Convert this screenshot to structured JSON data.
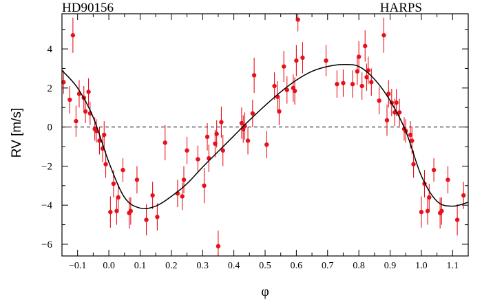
{
  "chart_data": {
    "type": "scatter",
    "title_left": "HD90156",
    "title_right": "HARPS",
    "xlabel": "φ",
    "ylabel": "RV [m/s]",
    "xlim": [
      -0.15,
      1.15
    ],
    "ylim": [
      -6.6,
      5.8
    ],
    "x_ticks": [
      -0.1,
      0.0,
      0.1,
      0.2,
      0.3,
      0.4,
      0.5,
      0.6,
      0.7,
      0.8,
      0.9,
      1.0,
      1.1
    ],
    "x_tick_labels": [
      "−0.1",
      "0.0",
      "0.1",
      "0.2",
      "0.3",
      "0.4",
      "0.5",
      "0.6",
      "0.7",
      "0.8",
      "0.9",
      "1.0",
      "1.1"
    ],
    "y_ticks": [
      -6,
      -4,
      -2,
      0,
      2,
      4
    ],
    "y_tick_labels": [
      "−6",
      "−4",
      "−2",
      "0",
      "2",
      "4"
    ],
    "zero_line": true,
    "colors": {
      "points": "#e8101a",
      "model": "#000000",
      "frame": "#000000"
    },
    "model_curve": {
      "x": [
        -0.15,
        -0.1,
        -0.05,
        0.0,
        0.05,
        0.1,
        0.15,
        0.2,
        0.25,
        0.3,
        0.35,
        0.4,
        0.45,
        0.5,
        0.55,
        0.6,
        0.65,
        0.7,
        0.75,
        0.8,
        0.85,
        0.9,
        0.95,
        1.0,
        1.05,
        1.1,
        1.15
      ],
      "y": [
        2.9,
        2.0,
        0.5,
        -1.8,
        -3.6,
        -4.15,
        -4.05,
        -3.55,
        -2.9,
        -2.05,
        -1.25,
        -0.45,
        0.35,
        1.1,
        1.8,
        2.4,
        2.85,
        3.1,
        3.2,
        3.1,
        2.45,
        1.35,
        -0.2,
        -2.5,
        -3.8,
        -4.05,
        -3.85
      ]
    },
    "points": [
      {
        "x": -0.145,
        "y": 2.3,
        "err": 0.6
      },
      {
        "x": -0.125,
        "y": 1.4,
        "err": 0.7
      },
      {
        "x": -0.115,
        "y": 4.7,
        "err": 0.9
      },
      {
        "x": -0.105,
        "y": 0.3,
        "err": 0.8
      },
      {
        "x": -0.095,
        "y": 1.7,
        "err": 0.7
      },
      {
        "x": -0.08,
        "y": 1.5,
        "err": 0.6
      },
      {
        "x": -0.075,
        "y": 0.8,
        "err": 0.6
      },
      {
        "x": -0.065,
        "y": 1.8,
        "err": 0.7
      },
      {
        "x": -0.06,
        "y": 0.7,
        "err": 0.6
      },
      {
        "x": -0.045,
        "y": -0.1,
        "err": 0.6
      },
      {
        "x": -0.04,
        "y": -0.2,
        "err": 0.6
      },
      {
        "x": -0.03,
        "y": -0.7,
        "err": 0.7
      },
      {
        "x": -0.02,
        "y": -1.1,
        "err": 0.7
      },
      {
        "x": -0.015,
        "y": -0.4,
        "err": 0.7
      },
      {
        "x": -0.01,
        "y": -1.9,
        "err": 0.7
      },
      {
        "x": 0.005,
        "y": -4.35,
        "err": 0.8
      },
      {
        "x": 0.015,
        "y": -2.9,
        "err": 0.7
      },
      {
        "x": 0.025,
        "y": -4.3,
        "err": 0.7
      },
      {
        "x": 0.03,
        "y": -3.6,
        "err": 0.7
      },
      {
        "x": 0.045,
        "y": -2.2,
        "err": 0.6
      },
      {
        "x": 0.065,
        "y": -4.4,
        "err": 0.8
      },
      {
        "x": 0.07,
        "y": -4.3,
        "err": 0.7
      },
      {
        "x": 0.09,
        "y": -2.7,
        "err": 0.7
      },
      {
        "x": 0.12,
        "y": -4.75,
        "err": 0.8
      },
      {
        "x": 0.14,
        "y": -3.5,
        "err": 0.7
      },
      {
        "x": 0.155,
        "y": -4.6,
        "err": 0.7
      },
      {
        "x": 0.18,
        "y": -0.8,
        "err": 0.9
      },
      {
        "x": 0.22,
        "y": -3.4,
        "err": 0.7
      },
      {
        "x": 0.235,
        "y": -3.55,
        "err": 0.7
      },
      {
        "x": 0.24,
        "y": -2.7,
        "err": 0.7
      },
      {
        "x": 0.25,
        "y": -1.2,
        "err": 0.7
      },
      {
        "x": 0.285,
        "y": -1.65,
        "err": 0.7
      },
      {
        "x": 0.305,
        "y": -3.0,
        "err": 0.9
      },
      {
        "x": 0.315,
        "y": -0.5,
        "err": 0.7
      },
      {
        "x": 0.32,
        "y": -1.6,
        "err": 0.7
      },
      {
        "x": 0.34,
        "y": -0.85,
        "err": 0.7
      },
      {
        "x": 0.345,
        "y": -0.35,
        "err": 0.7
      },
      {
        "x": 0.35,
        "y": -6.1,
        "err": 0.8
      },
      {
        "x": 0.36,
        "y": 0.25,
        "err": 0.8
      },
      {
        "x": 0.365,
        "y": -1.2,
        "err": 0.8
      },
      {
        "x": 0.425,
        "y": 0.2,
        "err": 0.8
      },
      {
        "x": 0.43,
        "y": -0.1,
        "err": 0.7
      },
      {
        "x": 0.435,
        "y": 0.05,
        "err": 0.7
      },
      {
        "x": 0.445,
        "y": -0.7,
        "err": 0.7
      },
      {
        "x": 0.46,
        "y": 0.7,
        "err": 0.7
      },
      {
        "x": 0.465,
        "y": 2.65,
        "err": 0.9
      },
      {
        "x": 0.505,
        "y": -0.9,
        "err": 0.7
      },
      {
        "x": 0.53,
        "y": 2.1,
        "err": 0.7
      },
      {
        "x": 0.54,
        "y": 1.55,
        "err": 0.8
      },
      {
        "x": 0.545,
        "y": 0.8,
        "err": 0.7
      },
      {
        "x": 0.56,
        "y": 3.1,
        "err": 0.8
      },
      {
        "x": 0.57,
        "y": 1.9,
        "err": 0.7
      },
      {
        "x": 0.59,
        "y": 2.0,
        "err": 0.7
      },
      {
        "x": 0.595,
        "y": 1.85,
        "err": 0.7
      },
      {
        "x": 0.6,
        "y": 3.4,
        "err": 0.8
      },
      {
        "x": 0.605,
        "y": 5.5,
        "err": 0.6
      },
      {
        "x": 0.62,
        "y": 3.55,
        "err": 0.8
      },
      {
        "x": 0.695,
        "y": 3.4,
        "err": 0.8
      },
      {
        "x": 0.73,
        "y": 2.2,
        "err": 0.7
      },
      {
        "x": 0.75,
        "y": 2.25,
        "err": 0.7
      },
      {
        "x": 0.78,
        "y": 2.2,
        "err": 0.7
      },
      {
        "x": 0.795,
        "y": 2.85,
        "err": 0.7
      },
      {
        "x": 0.8,
        "y": 3.6,
        "err": 0.8
      },
      {
        "x": 0.81,
        "y": 2.1,
        "err": 0.7
      },
      {
        "x": 0.82,
        "y": 4.15,
        "err": 0.8
      },
      {
        "x": 0.825,
        "y": 2.55,
        "err": 0.7
      },
      {
        "x": 0.83,
        "y": 2.9,
        "err": 0.7
      },
      {
        "x": 0.84,
        "y": 2.3,
        "err": 0.7
      },
      {
        "x": 0.865,
        "y": 1.35,
        "err": 0.7
      },
      {
        "x": 0.88,
        "y": 4.7,
        "err": 0.9
      },
      {
        "x": 0.89,
        "y": 0.35,
        "err": 0.8
      },
      {
        "x": 0.895,
        "y": 1.7,
        "err": 0.7
      },
      {
        "x": 0.905,
        "y": 1.25,
        "err": 0.7
      },
      {
        "x": 0.915,
        "y": 0.75,
        "err": 0.7
      },
      {
        "x": 0.92,
        "y": 1.25,
        "err": 0.7
      },
      {
        "x": 0.93,
        "y": 0.75,
        "err": 0.7
      },
      {
        "x": 0.945,
        "y": -0.1,
        "err": 0.6
      },
      {
        "x": 0.95,
        "y": -0.2,
        "err": 0.6
      },
      {
        "x": 0.965,
        "y": -0.4,
        "err": 0.7
      },
      {
        "x": 0.97,
        "y": -0.7,
        "err": 0.7
      },
      {
        "x": 0.975,
        "y": -1.9,
        "err": 0.7
      },
      {
        "x": 1.0,
        "y": -4.35,
        "err": 0.8
      },
      {
        "x": 1.01,
        "y": -2.9,
        "err": 0.7
      },
      {
        "x": 1.02,
        "y": -4.3,
        "err": 0.7
      },
      {
        "x": 1.025,
        "y": -3.6,
        "err": 0.7
      },
      {
        "x": 1.04,
        "y": -2.2,
        "err": 0.6
      },
      {
        "x": 1.06,
        "y": -4.4,
        "err": 0.8
      },
      {
        "x": 1.065,
        "y": -4.3,
        "err": 0.7
      },
      {
        "x": 1.085,
        "y": -2.7,
        "err": 0.7
      },
      {
        "x": 1.115,
        "y": -4.75,
        "err": 0.8
      },
      {
        "x": 1.135,
        "y": -3.5,
        "err": 0.7
      }
    ]
  }
}
